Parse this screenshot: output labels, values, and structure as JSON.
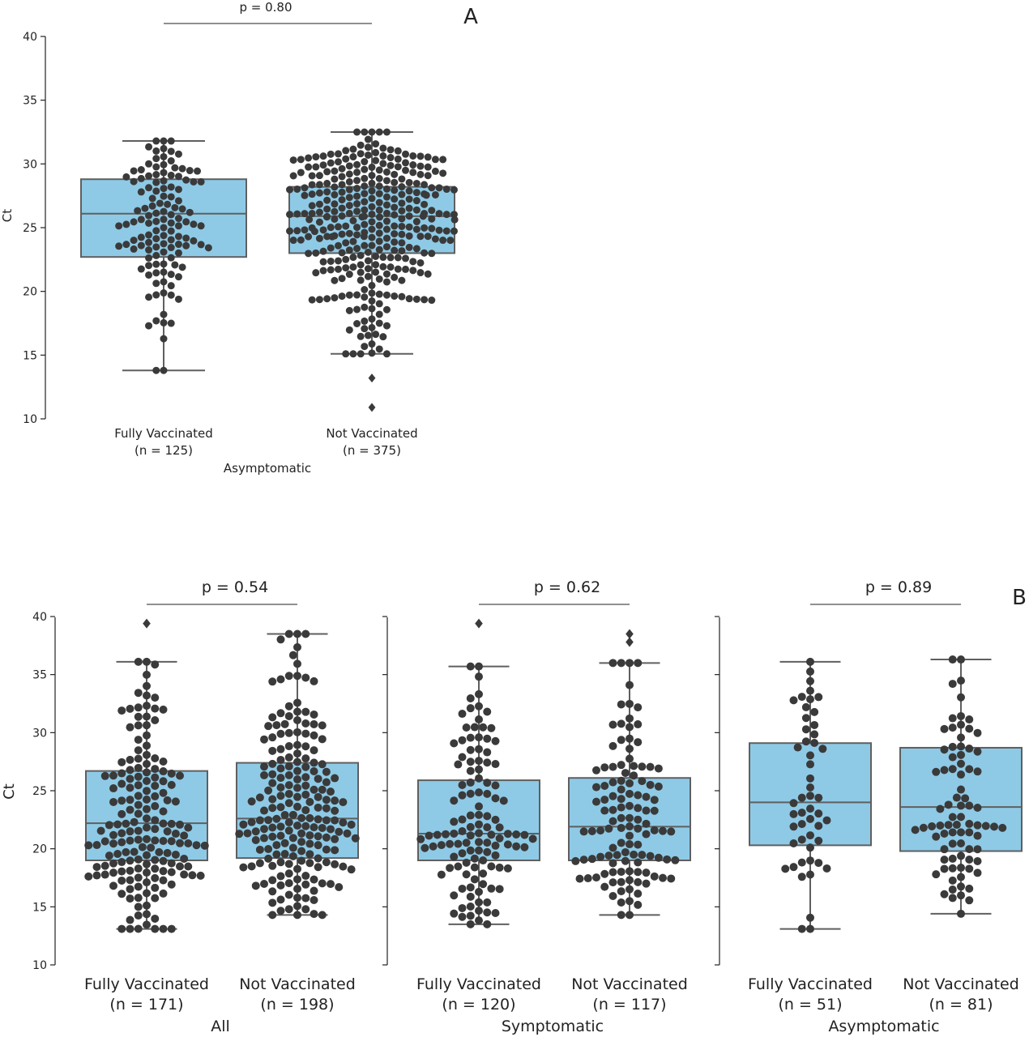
{
  "chart_data": [
    {
      "type": "box",
      "panel": "A",
      "ylabel": "Ct",
      "ylim": [
        10,
        40
      ],
      "yticks": [
        10,
        15,
        20,
        25,
        30,
        35,
        40
      ],
      "group_label": "Asymptomatic",
      "p_value": "p = 0.80",
      "categories": [
        "Fully Vaccinated",
        "Not Vaccinated"
      ],
      "counts": [
        "(n = 125)",
        "(n = 375)"
      ],
      "boxes": [
        {
          "q1": 22.7,
          "median": 26.1,
          "q3": 28.8,
          "whisker_low": 13.8,
          "whisker_high": 31.8,
          "outliers": []
        },
        {
          "q1": 23.0,
          "median": 25.9,
          "q3": 28.2,
          "whisker_low": 15.1,
          "whisker_high": 32.5,
          "outliers": [
            13.2,
            10.9
          ]
        }
      ]
    },
    {
      "type": "box",
      "panel": "B",
      "ylabel": "Ct",
      "ylim": [
        10,
        40
      ],
      "yticks": [
        10,
        15,
        20,
        25,
        30,
        35,
        40
      ],
      "groups": [
        {
          "label": "All",
          "p_value": "p = 0.54",
          "categories": [
            "Fully Vaccinated",
            "Not Vaccinated"
          ],
          "counts": [
            "(n = 171)",
            "(n = 198)"
          ],
          "boxes": [
            {
              "q1": 19.0,
              "median": 22.2,
              "q3": 26.7,
              "whisker_low": 13.1,
              "whisker_high": 36.1,
              "outliers": [
                39.4
              ]
            },
            {
              "q1": 19.2,
              "median": 22.6,
              "q3": 27.4,
              "whisker_low": 14.3,
              "whisker_high": 38.5,
              "outliers": []
            }
          ]
        },
        {
          "label": "Symptomatic",
          "p_value": "p = 0.62",
          "categories": [
            "Fully Vaccinated",
            "Not Vaccinated"
          ],
          "counts": [
            "(n = 120)",
            "(n = 117)"
          ],
          "boxes": [
            {
              "q1": 19.0,
              "median": 21.3,
              "q3": 25.9,
              "whisker_low": 13.5,
              "whisker_high": 35.7,
              "outliers": [
                39.4
              ]
            },
            {
              "q1": 19.0,
              "median": 21.9,
              "q3": 26.1,
              "whisker_low": 14.3,
              "whisker_high": 36.0,
              "outliers": [
                38.5,
                37.8
              ]
            }
          ]
        },
        {
          "label": "Asymptomatic",
          "p_value": "p = 0.89",
          "categories": [
            "Fully Vaccinated",
            "Not Vaccinated"
          ],
          "counts": [
            "(n = 51)",
            "(n = 81)"
          ],
          "boxes": [
            {
              "q1": 20.3,
              "median": 24.0,
              "q3": 29.1,
              "whisker_low": 13.1,
              "whisker_high": 36.1,
              "outliers": []
            },
            {
              "q1": 19.8,
              "median": 23.6,
              "q3": 28.7,
              "whisker_low": 14.4,
              "whisker_high": 36.3,
              "outliers": []
            }
          ]
        }
      ]
    }
  ],
  "colors": {
    "box_fill": "#8ecae6",
    "box_edge": "#5f5f5f",
    "points": "#3a3a3a",
    "axis": "#222222"
  }
}
